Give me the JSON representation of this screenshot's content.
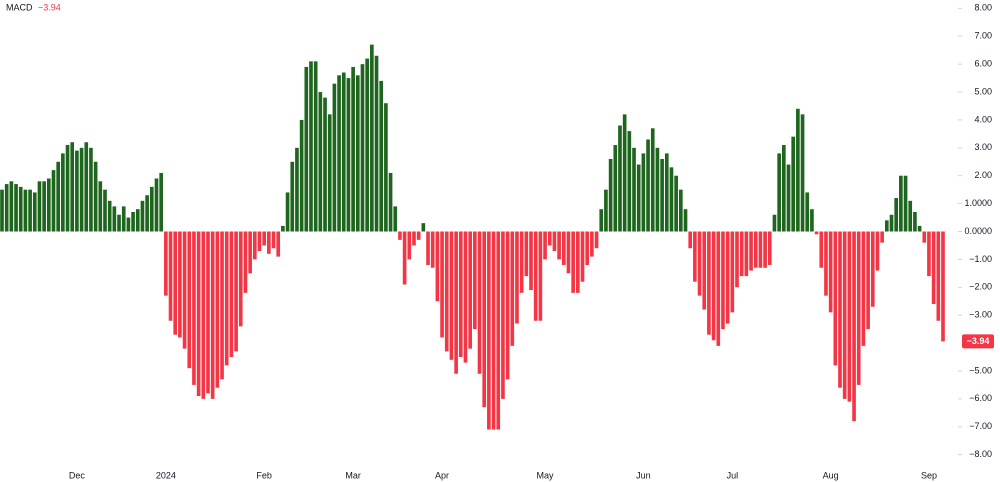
{
  "chart_data": {
    "type": "bar",
    "title": "MACD",
    "current_label": "−3.94",
    "colors": {
      "positive": "#1e651e",
      "negative": "#f23645",
      "label": "#f23645"
    },
    "ylim": [
      -8.3,
      8.3
    ],
    "yticks": [
      {
        "value": 8,
        "label": "8.00"
      },
      {
        "value": 7,
        "label": "7.00"
      },
      {
        "value": 6,
        "label": "6.00"
      },
      {
        "value": 5,
        "label": "5.00"
      },
      {
        "value": 4,
        "label": "4.00"
      },
      {
        "value": 3,
        "label": "3.00"
      },
      {
        "value": 2,
        "label": "2.00"
      },
      {
        "value": 1,
        "label": "1.0000"
      },
      {
        "value": 0,
        "label": "0.0000"
      },
      {
        "value": -1,
        "label": "−1.00"
      },
      {
        "value": -2,
        "label": "−2.00"
      },
      {
        "value": -3,
        "label": "−3.00"
      },
      {
        "value": -5,
        "label": "−5.00"
      },
      {
        "value": -6,
        "label": "−6.00"
      },
      {
        "value": -7,
        "label": "−7.00"
      },
      {
        "value": -8,
        "label": "−8.00"
      }
    ],
    "values": [
      1.5,
      1.7,
      1.8,
      1.7,
      1.6,
      1.5,
      1.5,
      1.4,
      1.8,
      1.8,
      1.9,
      2.2,
      2.5,
      2.8,
      3.1,
      3.2,
      2.9,
      3.0,
      3.2,
      3.0,
      2.5,
      1.8,
      1.5,
      1.1,
      0.9,
      0.6,
      0.9,
      0.5,
      0.7,
      0.8,
      1.1,
      1.3,
      1.6,
      1.9,
      2.1,
      -2.3,
      -3.2,
      -3.7,
      -3.8,
      -4.2,
      -4.9,
      -5.5,
      -5.9,
      -6.0,
      -5.8,
      -6.0,
      -5.6,
      -5.3,
      -4.8,
      -4.5,
      -4.3,
      -3.4,
      -2.2,
      -1.5,
      -1.0,
      -0.7,
      -0.5,
      -0.8,
      -0.6,
      -0.9,
      0.2,
      1.4,
      2.5,
      3.0,
      4.0,
      5.9,
      6.1,
      6.1,
      5.0,
      4.8,
      4.2,
      5.3,
      5.6,
      5.7,
      5.5,
      5.9,
      5.6,
      6.0,
      6.2,
      6.7,
      6.3,
      5.4,
      4.6,
      2.1,
      0.9,
      -0.3,
      -1.9,
      -1.0,
      -0.5,
      -0.3,
      0.3,
      -1.2,
      -1.3,
      -2.5,
      -3.8,
      -4.3,
      -4.6,
      -5.1,
      -4.5,
      -4.7,
      -4.2,
      -3.5,
      -5.1,
      -6.3,
      -7.1,
      -7.1,
      -7.1,
      -6.0,
      -5.3,
      -4.1,
      -3.3,
      -2.2,
      -1.6,
      -2.1,
      -3.2,
      -3.2,
      -1.0,
      -0.5,
      -0.7,
      -1.0,
      -1.2,
      -1.5,
      -2.2,
      -2.2,
      -1.8,
      -1.2,
      -0.9,
      -0.6,
      0.8,
      1.5,
      2.6,
      3.1,
      3.8,
      4.2,
      3.6,
      3.0,
      2.4,
      2.8,
      3.3,
      3.7,
      3.0,
      2.6,
      2.8,
      2.3,
      2.0,
      1.5,
      0.8,
      -0.6,
      -1.8,
      -2.3,
      -2.8,
      -3.7,
      -3.9,
      -4.1,
      -3.5,
      -3.3,
      -2.9,
      -2.0,
      -1.6,
      -1.6,
      -1.4,
      -1.3,
      -1.3,
      -1.3,
      -1.2,
      0.6,
      2.8,
      3.1,
      2.4,
      3.4,
      4.4,
      4.2,
      1.4,
      0.8,
      -0.1,
      -1.3,
      -2.3,
      -2.9,
      -4.8,
      -5.6,
      -6.0,
      -6.1,
      -6.8,
      -5.5,
      -4.1,
      -3.5,
      -2.7,
      -1.4,
      -0.4,
      0.4,
      0.6,
      1.2,
      2.0,
      2.0,
      1.1,
      0.7,
      0.2,
      -0.4,
      -1.6,
      -2.6,
      -3.2,
      -3.94
    ],
    "categories": [
      null,
      null,
      null,
      null,
      null,
      null,
      null,
      null,
      null,
      null,
      null,
      null,
      null,
      null,
      null,
      null,
      "Dec",
      null,
      null,
      null,
      null,
      null,
      null,
      null,
      null,
      null,
      null,
      null,
      null,
      null,
      null,
      null,
      null,
      null,
      null,
      "2024",
      null,
      null,
      null,
      null,
      null,
      null,
      null,
      null,
      null,
      null,
      null,
      null,
      null,
      null,
      null,
      null,
      null,
      null,
      null,
      null,
      "Feb",
      null,
      null,
      null,
      null,
      null,
      null,
      null,
      null,
      null,
      null,
      null,
      null,
      null,
      null,
      null,
      null,
      null,
      null,
      "Mar",
      null,
      null,
      null,
      null,
      null,
      null,
      null,
      null,
      null,
      null,
      null,
      null,
      null,
      null,
      null,
      null,
      null,
      null,
      "Apr",
      null,
      null,
      null,
      null,
      null,
      null,
      null,
      null,
      null,
      null,
      null,
      null,
      null,
      null,
      null,
      null,
      null,
      null,
      null,
      null,
      null,
      "May",
      null,
      null,
      null,
      null,
      null,
      null,
      null,
      null,
      null,
      null,
      null,
      null,
      null,
      null,
      null,
      null,
      null,
      null,
      null,
      null,
      "Jun",
      null,
      null,
      null,
      null,
      null,
      null,
      null,
      null,
      null,
      null,
      null,
      null,
      null,
      null,
      null,
      null,
      null,
      null,
      "Jul",
      null,
      null,
      null,
      null,
      null,
      null,
      null,
      null,
      null,
      null,
      null,
      null,
      null,
      null,
      null,
      null,
      null,
      null,
      null,
      null,
      "Aug",
      null,
      null,
      null,
      null,
      null,
      null,
      null,
      null,
      null,
      null,
      null,
      null,
      null,
      null,
      null,
      null,
      null,
      null,
      null,
      null,
      "Sep",
      null,
      null,
      null
    ]
  }
}
